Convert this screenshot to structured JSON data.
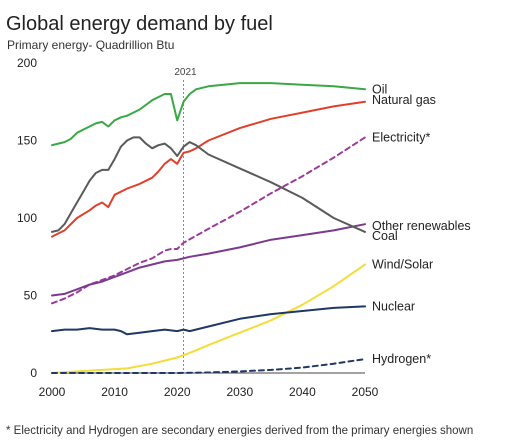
{
  "chart_data": {
    "type": "line",
    "title": "Global energy demand by fuel",
    "subtitle": "Primary energy- Quadrillion Btu",
    "xlim": [
      2000,
      2050
    ],
    "ylim": [
      0,
      200
    ],
    "x_ticks": [
      "2000",
      "2010",
      "2020",
      "2030",
      "2040",
      "2050"
    ],
    "y_ticks": [
      "0",
      "50",
      "100",
      "150",
      "200"
    ],
    "grid": false,
    "annotation": {
      "label": "2021",
      "x": 2021
    },
    "footnote": "* Electricity and Hydrogen are secondary energies derived from the primary energies shown",
    "series": [
      {
        "name": "Oil",
        "color": "#3aa845",
        "dashed": false,
        "points": [
          [
            2000,
            147
          ],
          [
            2001,
            148
          ],
          [
            2002,
            149
          ],
          [
            2003,
            151
          ],
          [
            2004,
            155
          ],
          [
            2005,
            157
          ],
          [
            2006,
            159
          ],
          [
            2007,
            161
          ],
          [
            2008,
            162
          ],
          [
            2009,
            159
          ],
          [
            2010,
            163
          ],
          [
            2011,
            165
          ],
          [
            2012,
            166
          ],
          [
            2013,
            168
          ],
          [
            2014,
            170
          ],
          [
            2015,
            173
          ],
          [
            2016,
            176
          ],
          [
            2017,
            178
          ],
          [
            2018,
            180
          ],
          [
            2019,
            180
          ],
          [
            2020,
            163
          ],
          [
            2021,
            175
          ],
          [
            2022,
            180
          ],
          [
            2023,
            183
          ],
          [
            2025,
            185
          ],
          [
            2030,
            187
          ],
          [
            2035,
            187
          ],
          [
            2040,
            186
          ],
          [
            2045,
            185
          ],
          [
            2050,
            183
          ]
        ]
      },
      {
        "name": "Natural gas",
        "color": "#e0402b",
        "dashed": false,
        "points": [
          [
            2000,
            88
          ],
          [
            2002,
            92
          ],
          [
            2004,
            100
          ],
          [
            2006,
            105
          ],
          [
            2007,
            108
          ],
          [
            2008,
            110
          ],
          [
            2009,
            107
          ],
          [
            2010,
            115
          ],
          [
            2012,
            119
          ],
          [
            2014,
            122
          ],
          [
            2015,
            124
          ],
          [
            2016,
            126
          ],
          [
            2017,
            130
          ],
          [
            2018,
            135
          ],
          [
            2019,
            138
          ],
          [
            2020,
            135
          ],
          [
            2021,
            142
          ],
          [
            2022,
            143
          ],
          [
            2023,
            145
          ],
          [
            2025,
            150
          ],
          [
            2030,
            158
          ],
          [
            2035,
            164
          ],
          [
            2040,
            168
          ],
          [
            2045,
            172
          ],
          [
            2050,
            175
          ]
        ]
      },
      {
        "name": "Electricity*",
        "color": "#9b3b99",
        "dashed": true,
        "points": [
          [
            2000,
            45
          ],
          [
            2002,
            48
          ],
          [
            2004,
            52
          ],
          [
            2006,
            57
          ],
          [
            2008,
            60
          ],
          [
            2010,
            63
          ],
          [
            2012,
            67
          ],
          [
            2014,
            71
          ],
          [
            2016,
            74
          ],
          [
            2018,
            79
          ],
          [
            2019,
            80
          ],
          [
            2020,
            80
          ],
          [
            2021,
            84
          ],
          [
            2025,
            93
          ],
          [
            2030,
            104
          ],
          [
            2035,
            116
          ],
          [
            2040,
            127
          ],
          [
            2045,
            139
          ],
          [
            2050,
            152
          ]
        ]
      },
      {
        "name": "Other renewables",
        "color": "#7a3b8f",
        "dashed": false,
        "points": [
          [
            2000,
            50
          ],
          [
            2002,
            51
          ],
          [
            2004,
            54
          ],
          [
            2006,
            57
          ],
          [
            2008,
            59
          ],
          [
            2010,
            62
          ],
          [
            2012,
            65
          ],
          [
            2014,
            68
          ],
          [
            2016,
            70
          ],
          [
            2018,
            72
          ],
          [
            2020,
            73
          ],
          [
            2022,
            75
          ],
          [
            2025,
            77
          ],
          [
            2030,
            81
          ],
          [
            2035,
            86
          ],
          [
            2040,
            89
          ],
          [
            2045,
            92
          ],
          [
            2050,
            96
          ]
        ]
      },
      {
        "name": "Coal",
        "color": "#5a5a5a",
        "dashed": false,
        "points": [
          [
            2000,
            91
          ],
          [
            2001,
            92
          ],
          [
            2002,
            96
          ],
          [
            2003,
            103
          ],
          [
            2004,
            110
          ],
          [
            2005,
            117
          ],
          [
            2006,
            124
          ],
          [
            2007,
            129
          ],
          [
            2008,
            131
          ],
          [
            2009,
            131
          ],
          [
            2010,
            138
          ],
          [
            2011,
            146
          ],
          [
            2012,
            150
          ],
          [
            2013,
            152
          ],
          [
            2014,
            152
          ],
          [
            2015,
            148
          ],
          [
            2016,
            145
          ],
          [
            2017,
            147
          ],
          [
            2018,
            148
          ],
          [
            2019,
            145
          ],
          [
            2020,
            140
          ],
          [
            2021,
            146
          ],
          [
            2022,
            149
          ],
          [
            2023,
            147
          ],
          [
            2025,
            141
          ],
          [
            2030,
            132
          ],
          [
            2035,
            123
          ],
          [
            2040,
            113
          ],
          [
            2045,
            100
          ],
          [
            2050,
            91
          ]
        ]
      },
      {
        "name": "Wind/Solar",
        "color": "#f2dd3a",
        "dashed": false,
        "points": [
          [
            2000,
            0
          ],
          [
            2004,
            1
          ],
          [
            2008,
            2
          ],
          [
            2012,
            3
          ],
          [
            2016,
            6
          ],
          [
            2018,
            8
          ],
          [
            2020,
            10
          ],
          [
            2022,
            13
          ],
          [
            2025,
            18
          ],
          [
            2030,
            26
          ],
          [
            2035,
            34
          ],
          [
            2040,
            44
          ],
          [
            2045,
            56
          ],
          [
            2050,
            70
          ]
        ]
      },
      {
        "name": "Nuclear",
        "color": "#1f3864",
        "dashed": false,
        "points": [
          [
            2000,
            27
          ],
          [
            2002,
            28
          ],
          [
            2004,
            28
          ],
          [
            2006,
            29
          ],
          [
            2008,
            28
          ],
          [
            2010,
            28
          ],
          [
            2011,
            27
          ],
          [
            2012,
            25
          ],
          [
            2014,
            26
          ],
          [
            2016,
            27
          ],
          [
            2018,
            28
          ],
          [
            2020,
            27
          ],
          [
            2021,
            28
          ],
          [
            2022,
            27
          ],
          [
            2025,
            30
          ],
          [
            2030,
            35
          ],
          [
            2035,
            38
          ],
          [
            2040,
            40
          ],
          [
            2045,
            42
          ],
          [
            2050,
            43
          ]
        ]
      },
      {
        "name": "Hydrogen*",
        "color": "#1f3864",
        "dashed": true,
        "points": [
          [
            2000,
            0
          ],
          [
            2020,
            0
          ],
          [
            2025,
            0.3
          ],
          [
            2030,
            1
          ],
          [
            2035,
            2
          ],
          [
            2040,
            3.5
          ],
          [
            2045,
            6
          ],
          [
            2050,
            9
          ]
        ]
      }
    ]
  }
}
